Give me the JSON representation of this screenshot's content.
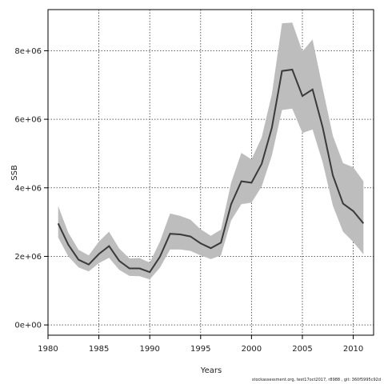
{
  "chart_data": {
    "type": "line",
    "xlabel": "Years",
    "ylabel": "SSB",
    "xlim": [
      1980,
      2012
    ],
    "ylim": [
      -300000,
      9200000
    ],
    "xticks": [
      1980,
      1985,
      1990,
      1995,
      2000,
      2005,
      2010
    ],
    "xtick_labels": [
      "1980",
      "1985",
      "1990",
      "1995",
      "2000",
      "2005",
      "2010"
    ],
    "yticks": [
      0,
      2000000,
      4000000,
      6000000,
      8000000
    ],
    "ytick_labels": [
      "0e+00",
      "2e+06",
      "4e+06",
      "6e+06",
      "8e+06"
    ],
    "grid": true,
    "colors": {
      "line": "#3a3a3a",
      "band": "#bdbdbd",
      "grid": "#333333",
      "axis": "#000000"
    },
    "x": [
      1981,
      1982,
      1983,
      1984,
      1985,
      1986,
      1987,
      1988,
      1989,
      1990,
      1991,
      1992,
      1993,
      1994,
      1995,
      1996,
      1997,
      1998,
      1999,
      2000,
      2001,
      2002,
      2003,
      2004,
      2005,
      2006,
      2007,
      2008,
      2009,
      2010,
      2011
    ],
    "series": [
      {
        "role": "estimate",
        "values": [
          2960000,
          2340000,
          1900000,
          1760000,
          2070000,
          2300000,
          1870000,
          1650000,
          1650000,
          1540000,
          1990000,
          2660000,
          2640000,
          2580000,
          2380000,
          2240000,
          2400000,
          3520000,
          4190000,
          4150000,
          4700000,
          5750000,
          7410000,
          7450000,
          6680000,
          6870000,
          5760000,
          4360000,
          3540000,
          3320000,
          2960000
        ]
      },
      {
        "role": "upper",
        "values": [
          3470000,
          2690000,
          2190000,
          2030000,
          2430000,
          2720000,
          2230000,
          1940000,
          1950000,
          1820000,
          2430000,
          3250000,
          3180000,
          3070000,
          2790000,
          2600000,
          2780000,
          4150000,
          5020000,
          4830000,
          5470000,
          6730000,
          8800000,
          8820000,
          7980000,
          8330000,
          6900000,
          5520000,
          4720000,
          4600000,
          4190000
        ]
      },
      {
        "role": "lower",
        "values": [
          2550000,
          2000000,
          1680000,
          1560000,
          1800000,
          1960000,
          1610000,
          1430000,
          1420000,
          1330000,
          1670000,
          2200000,
          2200000,
          2160000,
          2030000,
          1920000,
          2030000,
          3050000,
          3520000,
          3570000,
          4040000,
          4940000,
          6270000,
          6310000,
          5600000,
          5700000,
          4740000,
          3480000,
          2720000,
          2420000,
          2060000
        ]
      }
    ]
  },
  "footer": "stockassessment.org, test17oct2017, r8988 , git: 360f5995c92d"
}
